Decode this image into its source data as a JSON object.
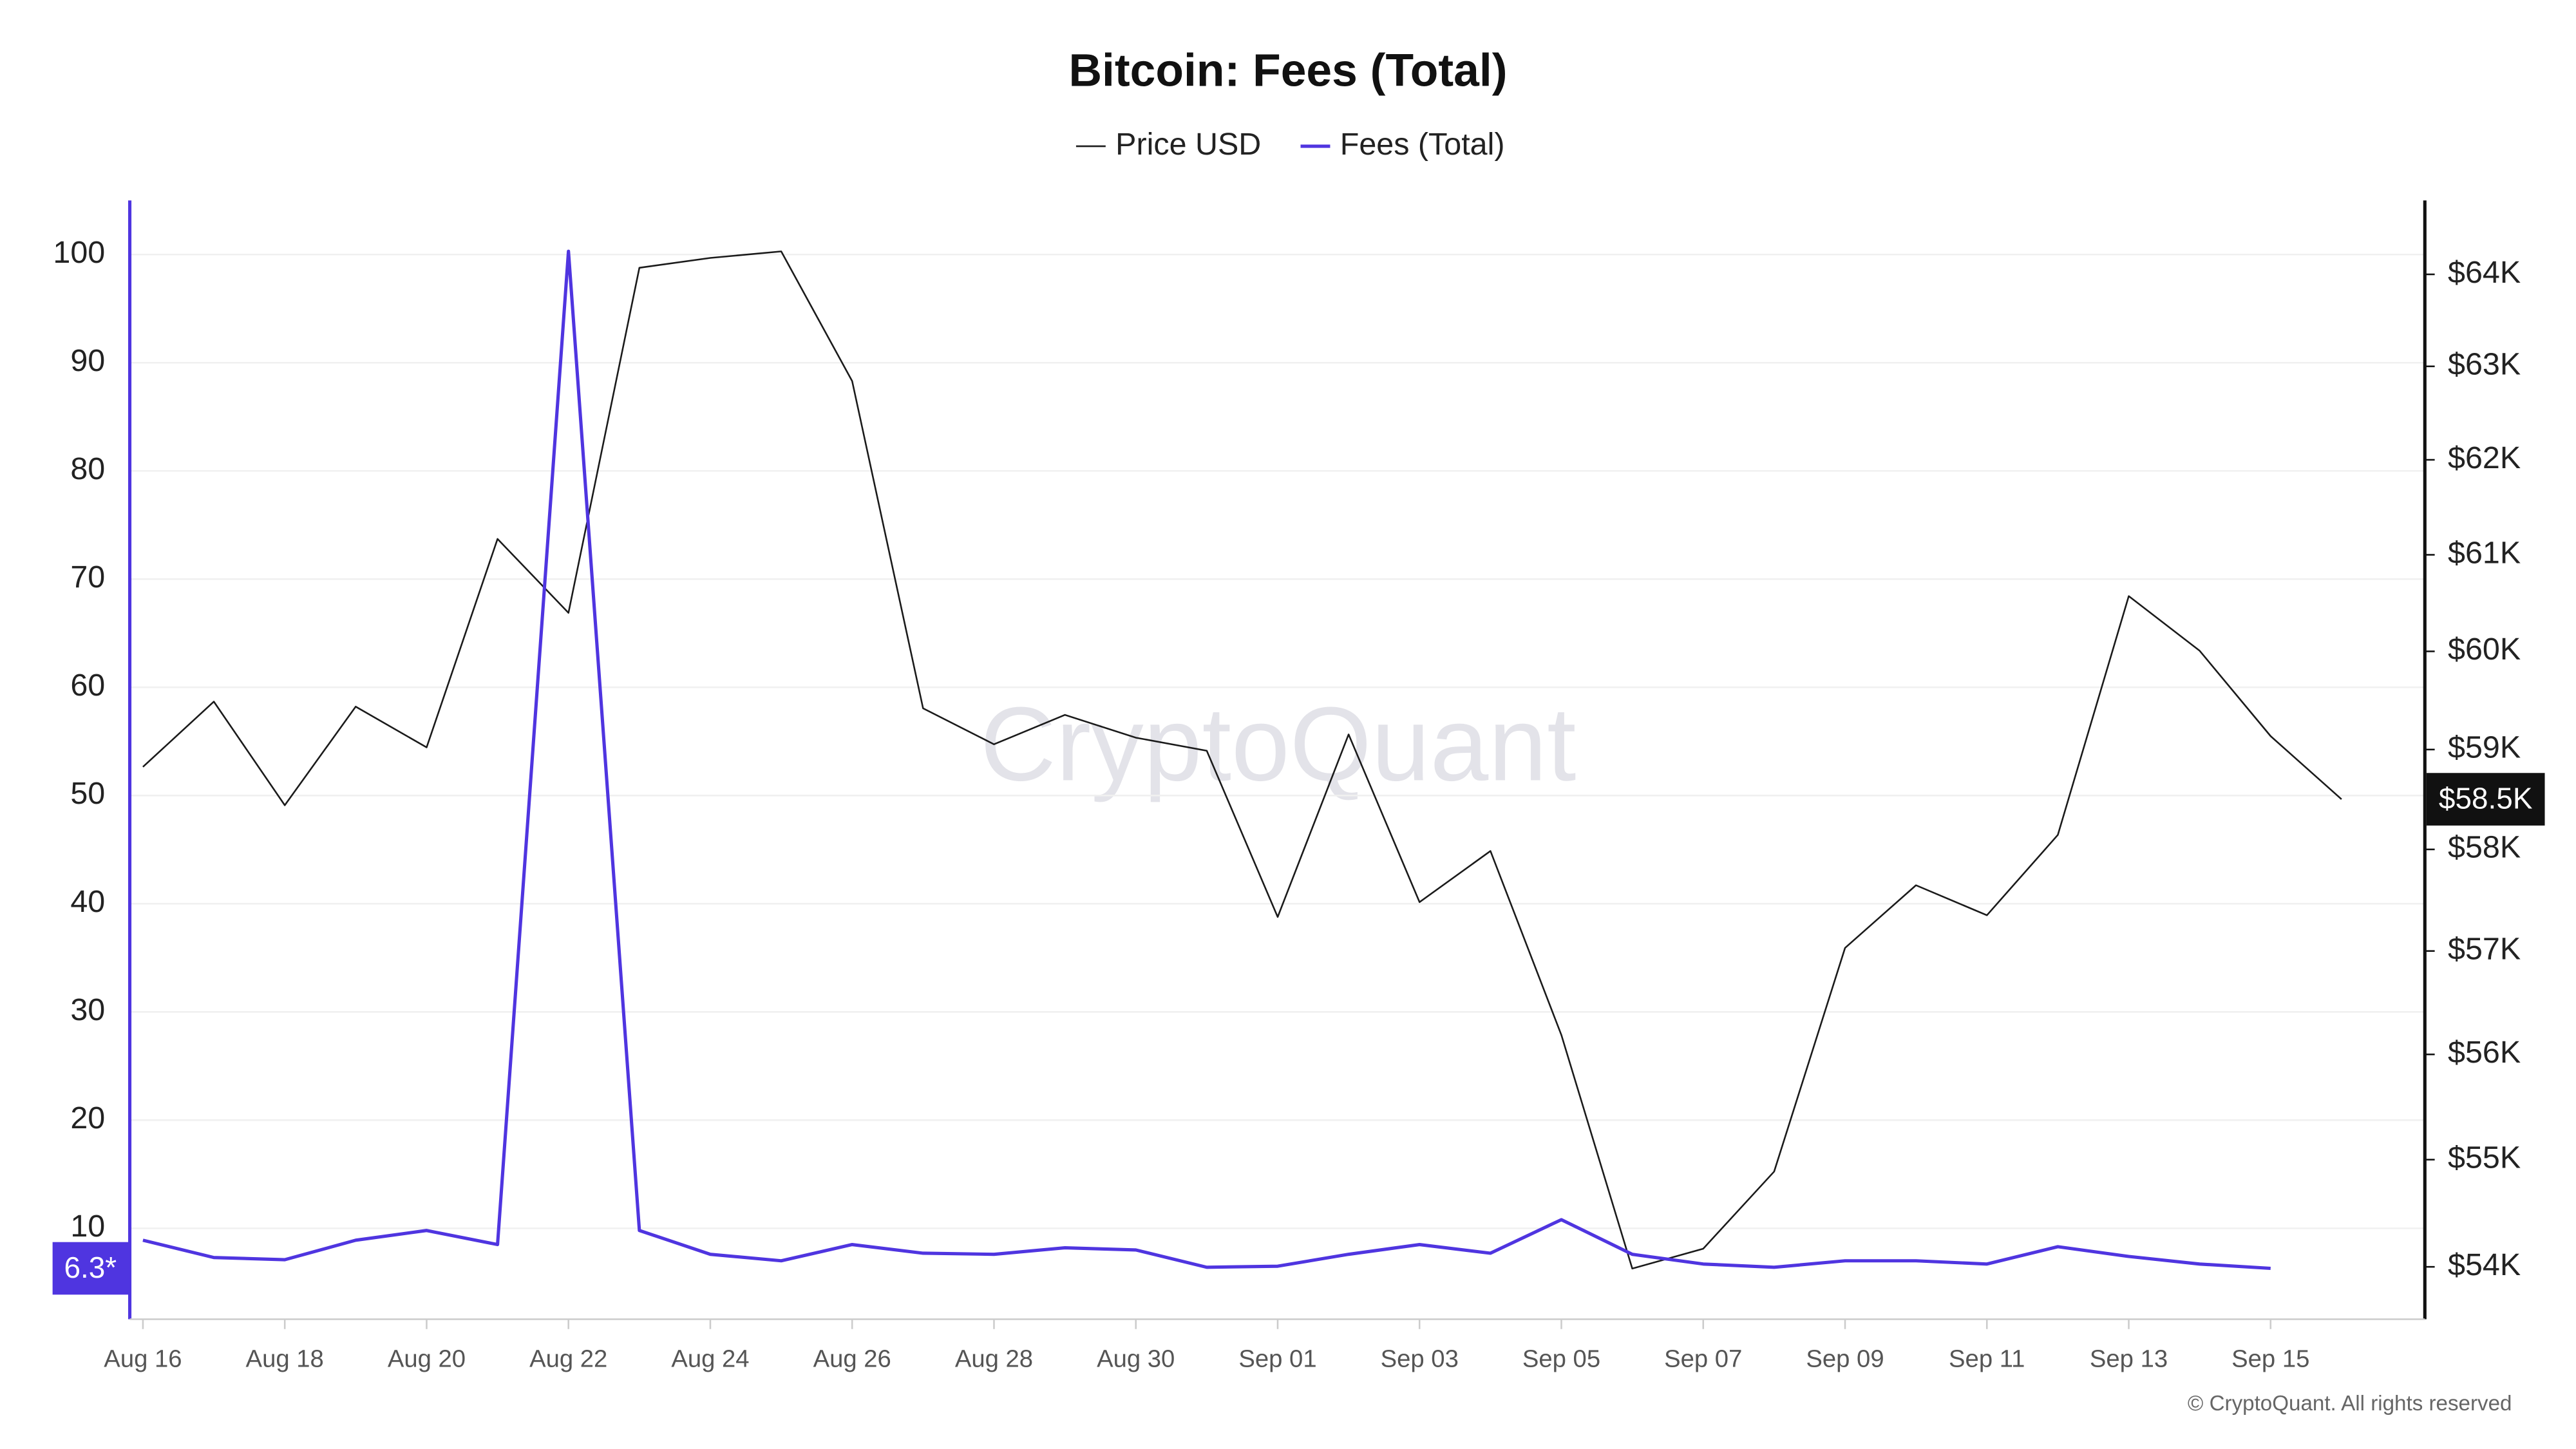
{
  "chart_data": {
    "type": "line",
    "title": "Bitcoin: Fees (Total)",
    "watermark": "CryptoQuant",
    "copyright": "© CryptoQuant. All rights reserved",
    "categories": [
      "Aug 16",
      null,
      "Aug 18",
      null,
      "Aug 20",
      null,
      "Aug 22",
      null,
      "Aug 24",
      null,
      "Aug 26",
      null,
      "Aug 28",
      null,
      "Aug 30",
      null,
      "Sep 01",
      null,
      "Sep 03",
      null,
      "Sep 05",
      null,
      "Sep 07",
      null,
      "Sep 09",
      null,
      "Sep 11",
      null,
      "Sep 13",
      null,
      "Sep 15",
      null
    ],
    "series": [
      {
        "name": "Price USD",
        "color": "#1a1a1a",
        "axis": "y2",
        "current_label": "$58.5K",
        "values": [
          58825,
          59486,
          58440,
          59435,
          59022,
          61166,
          60397,
          64072,
          64180,
          64252,
          62841,
          59418,
          59053,
          59351,
          59120,
          58988,
          57333,
          59153,
          57479,
          57984,
          56186,
          53984,
          54168,
          54888,
          57030,
          57645,
          57350,
          58144,
          60570,
          60006,
          59136,
          58500
        ]
      },
      {
        "name": "Fees (Total)",
        "color": "#4f35e0",
        "current_label": "6.3*",
        "values": [
          8.9,
          7.3,
          7.1,
          8.9,
          9.8,
          8.5,
          100.3,
          9.8,
          7.6,
          7.0,
          8.5,
          7.7,
          7.6,
          8.2,
          8.0,
          6.4,
          6.5,
          7.6,
          8.5,
          7.7,
          10.8,
          7.6,
          6.7,
          6.4,
          7.0,
          7.0,
          6.7,
          8.3,
          7.4,
          6.7,
          6.3,
          null
        ]
      }
    ],
    "ylim": [
      1.6,
      105
    ],
    "yticks": [
      10,
      20,
      30,
      40,
      50,
      60,
      70,
      80,
      90,
      100
    ],
    "y2lim": [
      53518,
      64815
    ],
    "y2scale": "log",
    "y2ticks": [
      {
        "value": 54000,
        "label": "$54K"
      },
      {
        "value": 55000,
        "label": "$55K"
      },
      {
        "value": 56000,
        "label": "$56K"
      },
      {
        "value": 57000,
        "label": "$57K"
      },
      {
        "value": 58000,
        "label": "$58K"
      },
      {
        "value": 59000,
        "label": "$59K"
      },
      {
        "value": 60000,
        "label": "$60K"
      },
      {
        "value": 61000,
        "label": "$61K"
      },
      {
        "value": 62000,
        "label": "$62K"
      },
      {
        "value": 63000,
        "label": "$63K"
      },
      {
        "value": 64000,
        "label": "$64K"
      }
    ],
    "grid": true,
    "legend": "top"
  }
}
